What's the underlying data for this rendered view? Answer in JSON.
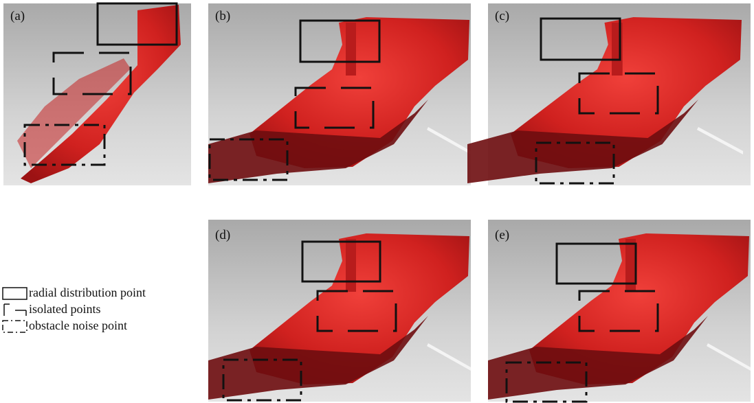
{
  "panels": [
    {
      "label": "(a)"
    },
    {
      "label": "(b)"
    },
    {
      "label": "(c)"
    },
    {
      "label": "(d)"
    },
    {
      "label": "(e)"
    }
  ],
  "legend": {
    "items": [
      "radial distribution point",
      "isolated points",
      "obstacle noise point"
    ]
  }
}
